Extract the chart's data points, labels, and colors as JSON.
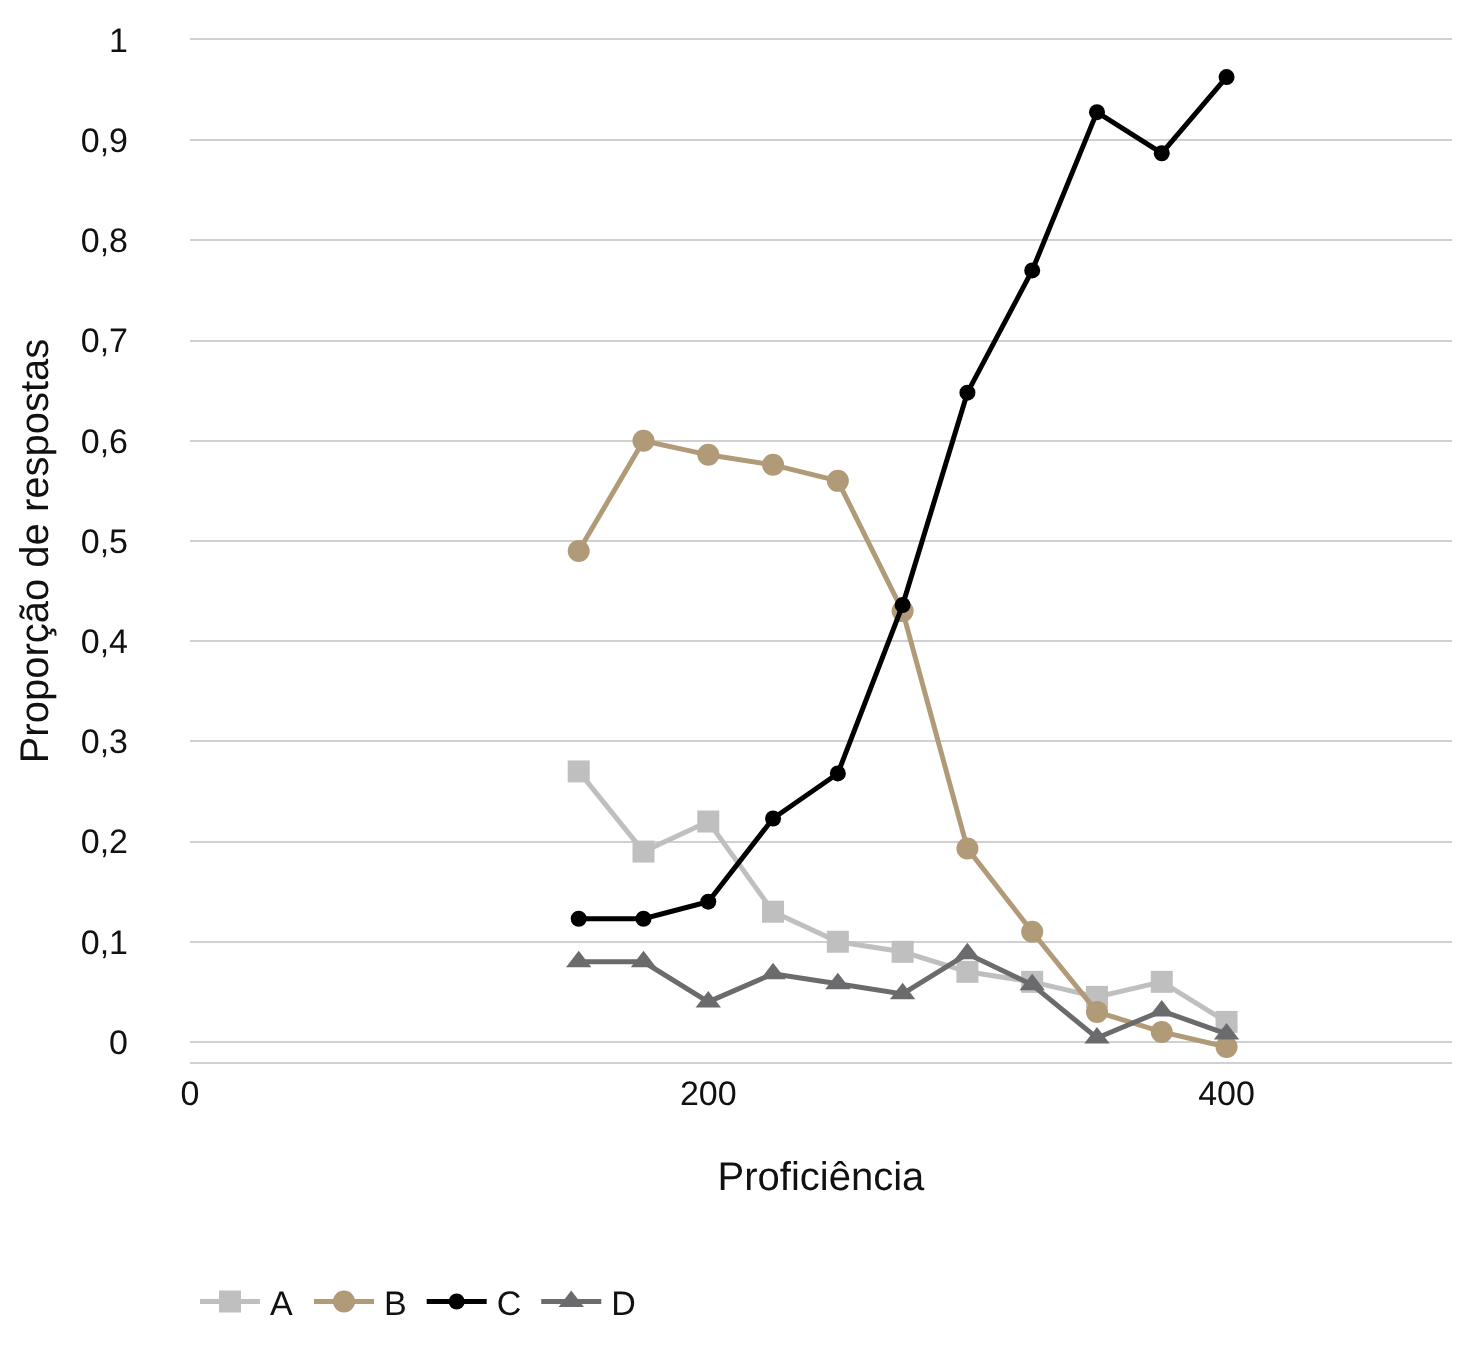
{
  "chart_data": {
    "type": "line",
    "xlabel": "Proficiência",
    "ylabel": "Proporção de respostas",
    "x": [
      150,
      175,
      200,
      225,
      250,
      275,
      300,
      325,
      350,
      375,
      400
    ],
    "series": [
      {
        "name": "A",
        "color": "#bfbfbf",
        "marker": "square",
        "values": [
          0.27,
          0.19,
          0.22,
          0.13,
          0.1,
          0.09,
          0.07,
          0.06,
          0.045,
          0.06,
          0.02
        ]
      },
      {
        "name": "B",
        "color": "#b09a78",
        "marker": "circle",
        "values": [
          0.49,
          0.6,
          0.586,
          0.576,
          0.56,
          0.43,
          0.193,
          0.11,
          0.03,
          0.01,
          -0.005
        ]
      },
      {
        "name": "C",
        "color": "#000000",
        "marker": "circle",
        "values": [
          0.123,
          0.123,
          0.14,
          0.223,
          0.268,
          0.436,
          0.648,
          0.77,
          0.928,
          0.887,
          0.963
        ]
      },
      {
        "name": "D",
        "color": "#6b6b6e",
        "marker": "triangle",
        "values": [
          0.08,
          0.08,
          0.04,
          0.068,
          0.058,
          0.048,
          0.088,
          0.057,
          0.004,
          0.031,
          0.008
        ]
      }
    ],
    "xlim": [
      0,
      487
    ],
    "xticks": [
      0,
      200,
      400
    ],
    "ylim": [
      -0.02,
      1.0
    ],
    "yticks": [
      0,
      {
        "value": 0.1,
        "label": "0,1"
      },
      {
        "value": 0.2,
        "label": "0,2"
      },
      {
        "value": 0.3,
        "label": "0,3"
      },
      {
        "value": 0.4,
        "label": "0,4"
      },
      {
        "value": 0.5,
        "label": "0,5"
      },
      {
        "value": 0.6,
        "label": "0,6"
      },
      {
        "value": 0.7,
        "label": "0,7"
      },
      {
        "value": 0.8,
        "label": "0,8"
      },
      {
        "value": 0.9,
        "label": "0,9"
      },
      1
    ],
    "grid": "y",
    "legend": "bottom",
    "line_style": "solid"
  }
}
